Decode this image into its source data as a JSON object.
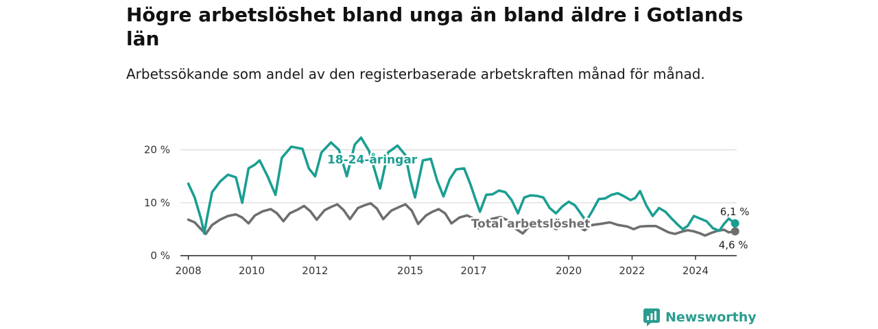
{
  "header": {
    "title": "Högre arbetslöshet bland unga än bland äldre i Gotlands län",
    "subtitle": "Arbetssökande som andel av den registerbaserade arbetskraften månad för månad."
  },
  "brand": {
    "name": "Newsworthy",
    "icon": "newsworthy-logo-icon",
    "color": "#2a9d8f"
  },
  "chart_data": {
    "type": "line",
    "title": "",
    "xlabel": "",
    "ylabel": "",
    "ylim": [
      0,
      25
    ],
    "xlim": [
      2007.75,
      2025.3
    ],
    "y_ticks": [
      0,
      10,
      20
    ],
    "y_tick_labels": [
      "0 %",
      "10 %",
      "20 %"
    ],
    "x_ticks": [
      2008,
      2010,
      2012,
      2015,
      2017,
      2020,
      2022,
      2024
    ],
    "x_tick_labels": [
      "2008",
      "2010",
      "2012",
      "2015",
      "2017",
      "2020",
      "2022",
      "2024"
    ],
    "grid": "horizontal",
    "legend": "inline labels",
    "series": [
      {
        "name": "18-24-åringar",
        "color": "#1a9e92",
        "end_label": "6,1 %",
        "points": [
          [
            2008.0,
            13.6
          ],
          [
            2008.2,
            11.0
          ],
          [
            2008.4,
            7.0
          ],
          [
            2008.5,
            4.2
          ],
          [
            2008.6,
            7.5
          ],
          [
            2008.75,
            12.0
          ],
          [
            2009.0,
            14.0
          ],
          [
            2009.25,
            15.3
          ],
          [
            2009.5,
            14.8
          ],
          [
            2009.7,
            10.0
          ],
          [
            2009.9,
            16.5
          ],
          [
            2010.1,
            17.2
          ],
          [
            2010.25,
            18.0
          ],
          [
            2010.5,
            15.0
          ],
          [
            2010.75,
            11.5
          ],
          [
            2010.95,
            18.5
          ],
          [
            2011.25,
            20.6
          ],
          [
            2011.6,
            20.2
          ],
          [
            2011.8,
            16.5
          ],
          [
            2012.0,
            15.0
          ],
          [
            2012.2,
            19.5
          ],
          [
            2012.5,
            21.4
          ],
          [
            2012.75,
            20.0
          ],
          [
            2013.0,
            15.0
          ],
          [
            2013.25,
            21.0
          ],
          [
            2013.45,
            22.3
          ],
          [
            2013.7,
            19.8
          ],
          [
            2014.05,
            12.7
          ],
          [
            2014.3,
            19.5
          ],
          [
            2014.6,
            20.8
          ],
          [
            2014.85,
            19.0
          ],
          [
            2015.0,
            14.5
          ],
          [
            2015.15,
            11.0
          ],
          [
            2015.4,
            18.0
          ],
          [
            2015.65,
            18.3
          ],
          [
            2015.85,
            14.2
          ],
          [
            2016.05,
            11.2
          ],
          [
            2016.25,
            14.5
          ],
          [
            2016.45,
            16.3
          ],
          [
            2016.7,
            16.5
          ],
          [
            2016.9,
            13.5
          ],
          [
            2017.05,
            10.8
          ],
          [
            2017.2,
            8.3
          ],
          [
            2017.4,
            11.5
          ],
          [
            2017.6,
            11.6
          ],
          [
            2017.8,
            12.3
          ],
          [
            2018.0,
            12.0
          ],
          [
            2018.2,
            10.5
          ],
          [
            2018.4,
            8.0
          ],
          [
            2018.6,
            11.0
          ],
          [
            2018.8,
            11.4
          ],
          [
            2019.0,
            11.3
          ],
          [
            2019.2,
            11.0
          ],
          [
            2019.4,
            9.0
          ],
          [
            2019.6,
            8.0
          ],
          [
            2019.8,
            9.3
          ],
          [
            2020.0,
            10.2
          ],
          [
            2020.2,
            9.5
          ],
          [
            2020.4,
            7.8
          ],
          [
            2020.55,
            6.5
          ],
          [
            2020.75,
            8.5
          ],
          [
            2020.95,
            10.7
          ],
          [
            2021.15,
            10.8
          ],
          [
            2021.35,
            11.5
          ],
          [
            2021.55,
            11.8
          ],
          [
            2021.75,
            11.2
          ],
          [
            2021.95,
            10.5
          ],
          [
            2022.1,
            10.9
          ],
          [
            2022.25,
            12.2
          ],
          [
            2022.45,
            9.5
          ],
          [
            2022.65,
            7.5
          ],
          [
            2022.85,
            9.0
          ],
          [
            2023.05,
            8.3
          ],
          [
            2023.25,
            7.0
          ],
          [
            2023.45,
            5.8
          ],
          [
            2023.6,
            5.0
          ],
          [
            2023.75,
            5.6
          ],
          [
            2023.95,
            7.5
          ],
          [
            2024.15,
            7.0
          ],
          [
            2024.35,
            6.5
          ],
          [
            2024.55,
            5.2
          ],
          [
            2024.75,
            4.7
          ],
          [
            2024.9,
            6.0
          ],
          [
            2025.05,
            7.0
          ],
          [
            2025.25,
            6.1
          ]
        ]
      },
      {
        "name": "Total arbetslöshet",
        "color": "#6e6e6e",
        "end_label": "4,6 %",
        "points": [
          [
            2008.0,
            6.8
          ],
          [
            2008.2,
            6.3
          ],
          [
            2008.4,
            5.0
          ],
          [
            2008.55,
            4.1
          ],
          [
            2008.75,
            5.8
          ],
          [
            2009.0,
            6.8
          ],
          [
            2009.25,
            7.5
          ],
          [
            2009.5,
            7.8
          ],
          [
            2009.7,
            7.2
          ],
          [
            2009.9,
            6.1
          ],
          [
            2010.1,
            7.6
          ],
          [
            2010.35,
            8.4
          ],
          [
            2010.6,
            8.8
          ],
          [
            2010.8,
            8.0
          ],
          [
            2011.0,
            6.5
          ],
          [
            2011.2,
            8.0
          ],
          [
            2011.45,
            8.7
          ],
          [
            2011.65,
            9.4
          ],
          [
            2011.85,
            8.4
          ],
          [
            2012.05,
            6.8
          ],
          [
            2012.3,
            8.6
          ],
          [
            2012.5,
            9.2
          ],
          [
            2012.7,
            9.7
          ],
          [
            2012.9,
            8.6
          ],
          [
            2013.1,
            6.9
          ],
          [
            2013.35,
            9.0
          ],
          [
            2013.55,
            9.5
          ],
          [
            2013.75,
            9.9
          ],
          [
            2013.95,
            8.9
          ],
          [
            2014.15,
            6.9
          ],
          [
            2014.4,
            8.5
          ],
          [
            2014.65,
            9.2
          ],
          [
            2014.85,
            9.7
          ],
          [
            2015.05,
            8.5
          ],
          [
            2015.25,
            6.0
          ],
          [
            2015.5,
            7.6
          ],
          [
            2015.7,
            8.3
          ],
          [
            2015.9,
            8.8
          ],
          [
            2016.1,
            8.0
          ],
          [
            2016.3,
            6.1
          ],
          [
            2016.55,
            7.2
          ],
          [
            2016.8,
            7.6
          ],
          [
            2017.0,
            7.0
          ],
          [
            2017.15,
            5.2
          ],
          [
            2017.35,
            6.5
          ],
          [
            2017.6,
            7.0
          ],
          [
            2017.85,
            7.3
          ],
          [
            2018.1,
            6.6
          ],
          [
            2018.35,
            5.0
          ],
          [
            2018.55,
            4.2
          ],
          [
            2018.8,
            5.8
          ],
          [
            2019.05,
            6.3
          ],
          [
            2019.35,
            6.0
          ],
          [
            2019.6,
            5.0
          ],
          [
            2019.8,
            5.5
          ],
          [
            2020.05,
            6.2
          ],
          [
            2020.3,
            5.5
          ],
          [
            2020.5,
            4.8
          ],
          [
            2020.75,
            5.8
          ],
          [
            2021.0,
            6.0
          ],
          [
            2021.3,
            6.3
          ],
          [
            2021.55,
            5.8
          ],
          [
            2021.85,
            5.5
          ],
          [
            2022.05,
            5.0
          ],
          [
            2022.25,
            5.5
          ],
          [
            2022.5,
            5.6
          ],
          [
            2022.75,
            5.6
          ],
          [
            2022.95,
            5.0
          ],
          [
            2023.15,
            4.4
          ],
          [
            2023.35,
            4.1
          ],
          [
            2023.55,
            4.5
          ],
          [
            2023.75,
            4.8
          ],
          [
            2023.95,
            4.6
          ],
          [
            2024.15,
            4.2
          ],
          [
            2024.3,
            3.8
          ],
          [
            2024.5,
            4.3
          ],
          [
            2024.7,
            4.7
          ],
          [
            2024.9,
            4.9
          ],
          [
            2025.05,
            4.4
          ],
          [
            2025.25,
            4.6
          ]
        ]
      }
    ]
  }
}
